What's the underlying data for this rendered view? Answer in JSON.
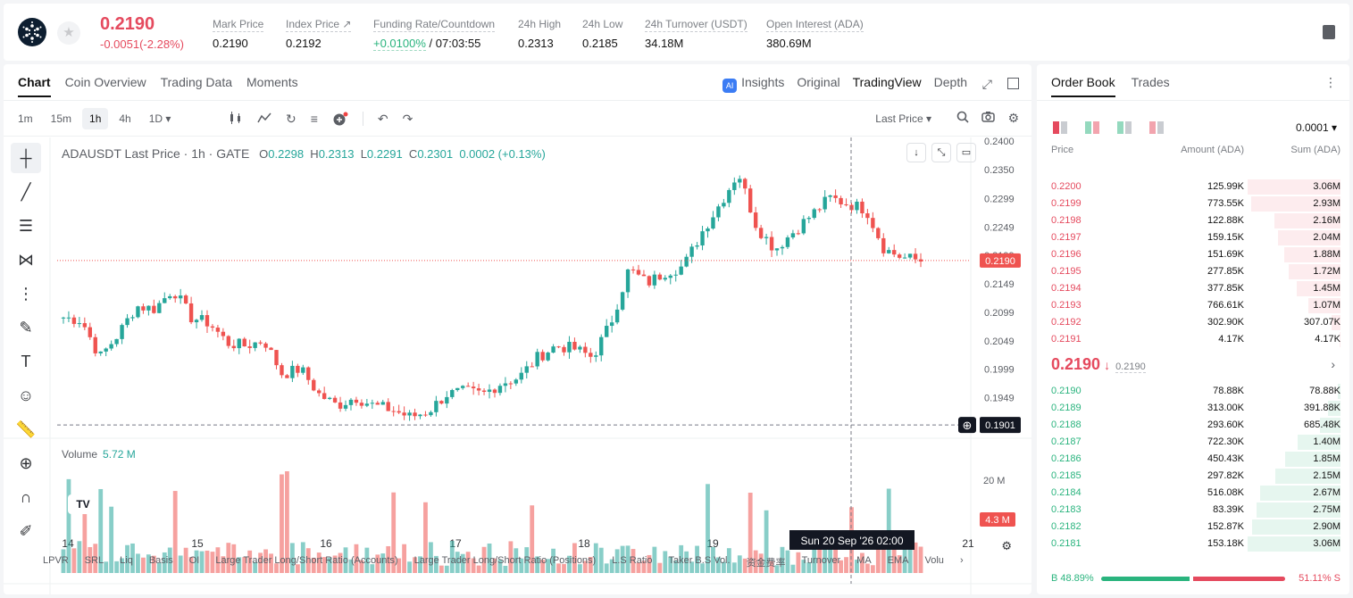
{
  "header": {
    "price": "0.2190",
    "change": "-0.0051(-2.28%)",
    "stats": [
      {
        "label": "Mark Price",
        "value": "0.2190"
      },
      {
        "label": "Index Price ↗",
        "value": "0.2192"
      },
      {
        "label": "Funding Rate/Countdown",
        "value_green": "+0.0100%",
        "value": " / 07:03:55"
      },
      {
        "label": "24h High",
        "value": "0.2313"
      },
      {
        "label": "24h Low",
        "value": "0.2185"
      },
      {
        "label": "24h Turnover (USDT)",
        "value": "34.18M"
      },
      {
        "label": "Open Interest (ADA)",
        "value": "380.69M"
      }
    ]
  },
  "chart_tabs": [
    "Chart",
    "Coin Overview",
    "Trading Data",
    "Moments"
  ],
  "view_tabs": {
    "insights": "Insights",
    "ai_badge": "AI",
    "original": "Original",
    "tradingview": "TradingView",
    "depth": "Depth"
  },
  "intervals": [
    "1m",
    "15m",
    "1h",
    "4h",
    "1D ▾"
  ],
  "toolbar": {
    "last_price": "Last Price ▾"
  },
  "legend": {
    "title": "ADAUSDT Last Price · 1h · GATE",
    "o_label": "O",
    "o": "0.2298",
    "h_label": "H",
    "h": "0.2313",
    "l_label": "L",
    "l": "0.2291",
    "c_label": "C",
    "c": "0.2301",
    "chg": "0.0002 (+0.13%)"
  },
  "volume": {
    "label": "Volume",
    "value": "5.72 M",
    "axis_label": "20 M",
    "last_tag": "4.3 M"
  },
  "indicators": [
    "LPVR",
    "SRL",
    "Liq",
    "Basis",
    "OI",
    "Large Trader Long/Short Ratio (Accounts)",
    "Large Trader Long/Short Ratio (Positions)",
    "L.S Ratio",
    "Taker B.S Vol.",
    "资金费率",
    "Turnover",
    "MA",
    "EMA",
    "Volu"
  ],
  "chart_data": {
    "type": "candlestick",
    "symbol": "ADAUSDT",
    "interval": "1h",
    "y_ticks": [
      "0.2400",
      "0.2350",
      "0.2299",
      "0.2249",
      "0.2199",
      "0.2149",
      "0.2099",
      "0.2049",
      "0.1999",
      "0.1949"
    ],
    "ylim": [
      0.1895,
      0.24
    ],
    "x_ticks": [
      "14",
      "15",
      "16",
      "17",
      "18",
      "19",
      "21"
    ],
    "last_price_tag": "0.2190",
    "crosshair_price": "0.1901",
    "crosshair_time": "Sun 20 Sep '26   02:00",
    "close_path": [
      0.209,
      0.2085,
      0.202,
      0.206,
      0.211,
      0.2105,
      0.214,
      0.209,
      0.208,
      0.2045,
      0.204,
      0.205,
      0.199,
      0.2,
      0.1955,
      0.1935,
      0.195,
      0.1935,
      0.1928,
      0.1915,
      0.1925,
      0.1955,
      0.196,
      0.1955,
      0.1975,
      0.1985,
      0.202,
      0.204,
      0.2035,
      0.202,
      0.208,
      0.2175,
      0.215,
      0.217,
      0.218,
      0.224,
      0.229,
      0.2345,
      0.225,
      0.221,
      0.224,
      0.227,
      0.23,
      0.229,
      0.228,
      0.221,
      0.2195,
      0.219
    ]
  },
  "order_book": {
    "tabs": [
      "Order Book",
      "Trades"
    ],
    "precision": "0.0001 ▾",
    "headers": [
      "Price",
      "Amount (ADA)",
      "Sum (ADA)"
    ],
    "asks": [
      {
        "price": "0.2200",
        "amount": "125.99K",
        "sum": "3.06M",
        "depth": 1.0
      },
      {
        "price": "0.2199",
        "amount": "773.55K",
        "sum": "2.93M",
        "depth": 0.96
      },
      {
        "price": "0.2198",
        "amount": "122.88K",
        "sum": "2.16M",
        "depth": 0.71
      },
      {
        "price": "0.2197",
        "amount": "159.15K",
        "sum": "2.04M",
        "depth": 0.67
      },
      {
        "price": "0.2196",
        "amount": "151.69K",
        "sum": "1.88M",
        "depth": 0.61
      },
      {
        "price": "0.2195",
        "amount": "277.85K",
        "sum": "1.72M",
        "depth": 0.56
      },
      {
        "price": "0.2194",
        "amount": "377.85K",
        "sum": "1.45M",
        "depth": 0.47
      },
      {
        "price": "0.2193",
        "amount": "766.61K",
        "sum": "1.07M",
        "depth": 0.35
      },
      {
        "price": "0.2192",
        "amount": "302.90K",
        "sum": "307.07K",
        "depth": 0.1
      },
      {
        "price": "0.2191",
        "amount": "4.17K",
        "sum": "4.17K",
        "depth": 0.01
      }
    ],
    "mid_price": "0.2190",
    "mid_arrow": "↓",
    "mark_price": "0.2190",
    "bids": [
      {
        "price": "0.2190",
        "amount": "78.88K",
        "sum": "78.88K",
        "depth": 0.03
      },
      {
        "price": "0.2189",
        "amount": "313.00K",
        "sum": "391.88K",
        "depth": 0.13
      },
      {
        "price": "0.2188",
        "amount": "293.60K",
        "sum": "685.48K",
        "depth": 0.22
      },
      {
        "price": "0.2187",
        "amount": "722.30K",
        "sum": "1.40M",
        "depth": 0.46
      },
      {
        "price": "0.2186",
        "amount": "450.43K",
        "sum": "1.85M",
        "depth": 0.6
      },
      {
        "price": "0.2185",
        "amount": "297.82K",
        "sum": "2.15M",
        "depth": 0.7
      },
      {
        "price": "0.2184",
        "amount": "516.08K",
        "sum": "2.67M",
        "depth": 0.87
      },
      {
        "price": "0.2183",
        "amount": "83.39K",
        "sum": "2.75M",
        "depth": 0.9
      },
      {
        "price": "0.2182",
        "amount": "152.87K",
        "sum": "2.90M",
        "depth": 0.95
      },
      {
        "price": "0.2181",
        "amount": "153.18K",
        "sum": "3.06M",
        "depth": 1.0
      }
    ],
    "buy_ratio": "B 48.89%",
    "sell_ratio": "51.11% S",
    "buy_fraction": 0.4889
  },
  "colors": {
    "up": "#26a69a",
    "down": "#ef5350",
    "ask": "#e54a5e",
    "bid": "#2ab47e"
  }
}
